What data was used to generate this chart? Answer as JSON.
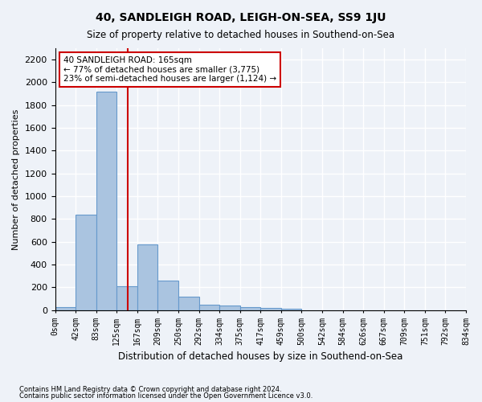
{
  "title": "40, SANDLEIGH ROAD, LEIGH-ON-SEA, SS9 1JU",
  "subtitle": "Size of property relative to detached houses in Southend-on-Sea",
  "xlabel": "Distribution of detached houses by size in Southend-on-Sea",
  "ylabel": "Number of detached properties",
  "bar_values": [
    30,
    840,
    1920,
    210,
    580,
    260,
    120,
    50,
    40,
    25,
    20,
    10,
    0,
    0,
    0,
    0,
    0,
    0,
    0,
    0
  ],
  "bin_labels": [
    "0sqm",
    "42sqm",
    "83sqm",
    "125sqm",
    "167sqm",
    "209sqm",
    "250sqm",
    "292sqm",
    "334sqm",
    "375sqm",
    "417sqm",
    "459sqm",
    "500sqm",
    "542sqm",
    "584sqm",
    "626sqm",
    "667sqm",
    "709sqm",
    "751sqm",
    "792sqm",
    "834sqm"
  ],
  "bar_color": "#aac4e0",
  "bar_edge_color": "#6699cc",
  "background_color": "#eef2f8",
  "grid_color": "#ffffff",
  "vline_color": "#cc0000",
  "vline_pos": 3.55,
  "annotation_text": "40 SANDLEIGH ROAD: 165sqm\n← 77% of detached houses are smaller (3,775)\n23% of semi-detached houses are larger (1,124) →",
  "annotation_box_color": "#ffffff",
  "annotation_box_edge": "#cc0000",
  "ylim": [
    0,
    2300
  ],
  "yticks": [
    0,
    200,
    400,
    600,
    800,
    1000,
    1200,
    1400,
    1600,
    1800,
    2000,
    2200
  ],
  "footnote1": "Contains HM Land Registry data © Crown copyright and database right 2024.",
  "footnote2": "Contains public sector information licensed under the Open Government Licence v3.0.",
  "num_bins": 20
}
